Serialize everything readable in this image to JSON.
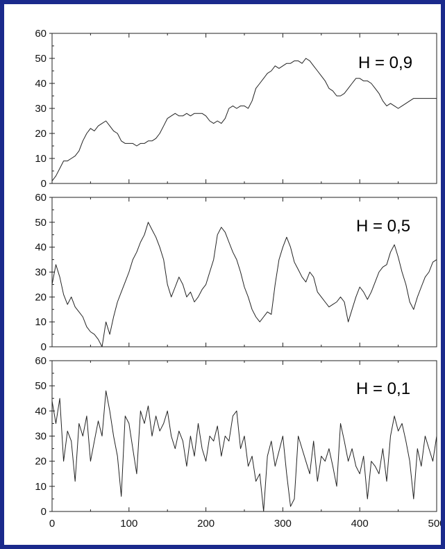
{
  "frame_color": "#1a2a8c",
  "chart_data": [
    {
      "type": "line",
      "panel_label": "H = 0,9",
      "title": "",
      "xlabel": "",
      "ylabel": "",
      "xlim": [
        0,
        500
      ],
      "ylim": [
        0,
        60
      ],
      "y_ticks": [
        "0",
        "10",
        "20",
        "30",
        "40",
        "50",
        "60"
      ],
      "x_ticks": [],
      "grid": false,
      "series": [
        {
          "x": [
            0,
            5,
            10,
            15,
            20,
            25,
            30,
            35,
            40,
            45,
            50,
            55,
            60,
            65,
            70,
            75,
            80,
            85,
            90,
            95,
            100,
            105,
            110,
            115,
            120,
            125,
            130,
            135,
            140,
            145,
            150,
            155,
            160,
            165,
            170,
            175,
            180,
            185,
            190,
            195,
            200,
            205,
            210,
            215,
            220,
            225,
            230,
            235,
            240,
            245,
            250,
            255,
            260,
            265,
            270,
            275,
            280,
            285,
            290,
            295,
            300,
            305,
            310,
            315,
            320,
            325,
            330,
            335,
            340,
            345,
            350,
            355,
            360,
            365,
            370,
            375,
            380,
            385,
            390,
            395,
            400,
            405,
            410,
            415,
            420,
            425,
            430,
            435,
            440,
            445,
            450,
            455,
            460,
            465,
            470,
            475,
            480,
            485,
            490,
            495,
            500
          ],
          "y": [
            1,
            3,
            6,
            9,
            9,
            10,
            11,
            13,
            17,
            20,
            22,
            21,
            23,
            24,
            25,
            23,
            21,
            20,
            17,
            16,
            16,
            16,
            15,
            16,
            16,
            17,
            17,
            18,
            20,
            23,
            26,
            27,
            28,
            27,
            27,
            28,
            27,
            28,
            28,
            28,
            27,
            25,
            24,
            25,
            24,
            26,
            30,
            31,
            30,
            31,
            31,
            30,
            33,
            38,
            40,
            42,
            44,
            45,
            47,
            46,
            47,
            48,
            48,
            49,
            49,
            48,
            50,
            49,
            47,
            45,
            43,
            41,
            38,
            37,
            35,
            35,
            36,
            38,
            40,
            42,
            42,
            41,
            41,
            40,
            38,
            36,
            33,
            31,
            32,
            31,
            30,
            31,
            32,
            33,
            34,
            34,
            34,
            34,
            34,
            34,
            34
          ]
        }
      ]
    },
    {
      "type": "line",
      "panel_label": "H = 0,5",
      "title": "",
      "xlabel": "",
      "ylabel": "",
      "xlim": [
        0,
        500
      ],
      "ylim": [
        0,
        60
      ],
      "y_ticks": [
        "0",
        "10",
        "20",
        "30",
        "40",
        "50",
        "60"
      ],
      "x_ticks": [],
      "grid": false,
      "series": [
        {
          "x": [
            0,
            5,
            10,
            15,
            20,
            25,
            30,
            35,
            40,
            45,
            50,
            55,
            60,
            65,
            70,
            75,
            80,
            85,
            90,
            95,
            100,
            105,
            110,
            115,
            120,
            125,
            130,
            135,
            140,
            145,
            150,
            155,
            160,
            165,
            170,
            175,
            180,
            185,
            190,
            195,
            200,
            205,
            210,
            215,
            220,
            225,
            230,
            235,
            240,
            245,
            250,
            255,
            260,
            265,
            270,
            275,
            280,
            285,
            290,
            295,
            300,
            305,
            310,
            315,
            320,
            325,
            330,
            335,
            340,
            345,
            350,
            355,
            360,
            365,
            370,
            375,
            380,
            385,
            390,
            395,
            400,
            405,
            410,
            415,
            420,
            425,
            430,
            435,
            440,
            445,
            450,
            455,
            460,
            465,
            470,
            475,
            480,
            485,
            490,
            495,
            500
          ],
          "y": [
            25,
            33,
            28,
            21,
            17,
            20,
            16,
            14,
            12,
            8,
            6,
            5,
            3,
            0,
            10,
            5,
            12,
            18,
            22,
            26,
            30,
            35,
            38,
            42,
            45,
            50,
            47,
            44,
            40,
            35,
            25,
            20,
            24,
            28,
            25,
            20,
            22,
            18,
            20,
            23,
            25,
            30,
            35,
            45,
            48,
            46,
            42,
            38,
            35,
            30,
            24,
            20,
            15,
            12,
            10,
            12,
            14,
            13,
            25,
            35,
            40,
            44,
            40,
            34,
            31,
            28,
            26,
            30,
            28,
            22,
            20,
            18,
            16,
            17,
            18,
            20,
            18,
            10,
            15,
            20,
            24,
            22,
            19,
            22,
            26,
            30,
            32,
            33,
            38,
            41,
            36,
            30,
            25,
            18,
            15,
            20,
            24,
            28,
            30,
            34,
            35
          ]
        }
      ]
    },
    {
      "type": "line",
      "panel_label": "H = 0,1",
      "title": "",
      "xlabel": "",
      "ylabel": "",
      "xlim": [
        0,
        500
      ],
      "ylim": [
        0,
        60
      ],
      "y_ticks": [
        "0",
        "10",
        "20",
        "30",
        "40",
        "50",
        "60"
      ],
      "x_ticks": [
        "0",
        "100",
        "200",
        "300",
        "400",
        "500"
      ],
      "grid": false,
      "series": [
        {
          "x": [
            0,
            5,
            10,
            15,
            20,
            25,
            30,
            35,
            40,
            45,
            50,
            55,
            60,
            65,
            70,
            75,
            80,
            85,
            90,
            95,
            100,
            105,
            110,
            115,
            120,
            125,
            130,
            135,
            140,
            145,
            150,
            155,
            160,
            165,
            170,
            175,
            180,
            185,
            190,
            195,
            200,
            205,
            210,
            215,
            220,
            225,
            230,
            235,
            240,
            245,
            250,
            255,
            260,
            265,
            270,
            275,
            280,
            285,
            290,
            295,
            300,
            305,
            310,
            315,
            320,
            325,
            330,
            335,
            340,
            345,
            350,
            355,
            360,
            365,
            370,
            375,
            380,
            385,
            390,
            395,
            400,
            405,
            410,
            415,
            420,
            425,
            430,
            435,
            440,
            445,
            450,
            455,
            460,
            465,
            470,
            475,
            480,
            485,
            490,
            495,
            500
          ],
          "y": [
            44,
            35,
            45,
            20,
            32,
            28,
            12,
            35,
            30,
            38,
            20,
            28,
            36,
            30,
            48,
            40,
            30,
            22,
            6,
            38,
            35,
            25,
            15,
            40,
            35,
            42,
            30,
            38,
            32,
            35,
            40,
            30,
            25,
            32,
            28,
            18,
            30,
            22,
            35,
            25,
            20,
            30,
            28,
            34,
            22,
            30,
            28,
            38,
            40,
            25,
            30,
            18,
            22,
            12,
            15,
            0,
            22,
            28,
            18,
            24,
            30,
            15,
            2,
            5,
            30,
            25,
            20,
            15,
            28,
            12,
            22,
            20,
            25,
            18,
            10,
            35,
            28,
            20,
            25,
            18,
            15,
            22,
            5,
            20,
            18,
            15,
            25,
            12,
            30,
            38,
            32,
            35,
            28,
            20,
            5,
            25,
            18,
            30,
            25,
            20,
            30
          ]
        }
      ]
    }
  ]
}
